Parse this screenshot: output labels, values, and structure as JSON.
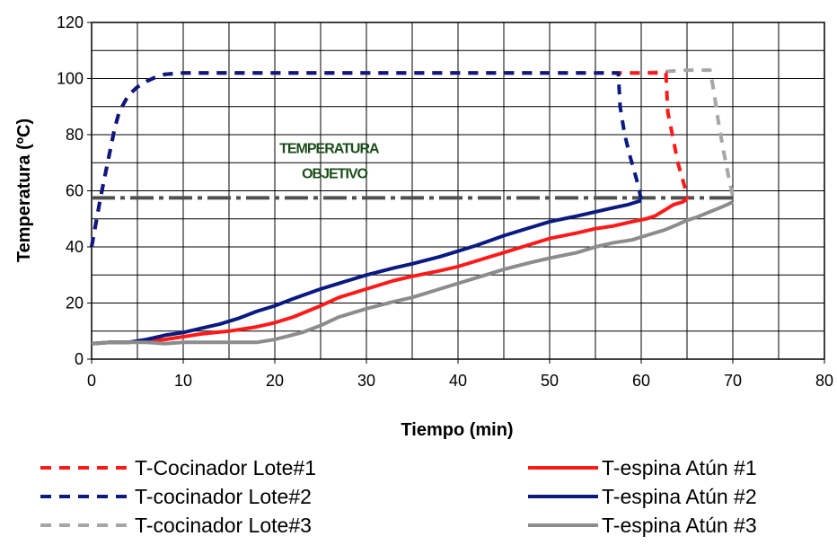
{
  "chart_data": {
    "type": "line",
    "title": "",
    "xlabel": "Tiempo (min)",
    "ylabel": "Temperatura (ºC)",
    "xlim": [
      0,
      80
    ],
    "ylim": [
      0,
      120
    ],
    "xticks": [
      0,
      10,
      20,
      30,
      40,
      50,
      60,
      70,
      80
    ],
    "yticks": [
      0,
      20,
      40,
      60,
      80,
      100,
      120
    ],
    "x_minor_step": 5,
    "y_minor_step": 10,
    "grid": true,
    "legend_position": "bottom",
    "annotation": {
      "line1": "TEMPERATURA",
      "line2": "OBJETIVO",
      "color": "#1a4d1a",
      "x": 20.5,
      "y1": 73.5,
      "y2": 64.5
    },
    "target_line": {
      "y": 57.5,
      "x_start": 0,
      "x_end": 70,
      "color": "#505050"
    },
    "series": [
      {
        "name": "T-Cocinador Lote#1",
        "style": "dashed",
        "color": "#ff1a1a",
        "points": [
          [
            0,
            40
          ],
          [
            0.5,
            49
          ],
          [
            1,
            58
          ],
          [
            1.5,
            66
          ],
          [
            2,
            74
          ],
          [
            2.5,
            82
          ],
          [
            3,
            88
          ],
          [
            4,
            94
          ],
          [
            5,
            97
          ],
          [
            6,
            99
          ],
          [
            7,
            100.5
          ],
          [
            8,
            101.5
          ],
          [
            10,
            102
          ],
          [
            20,
            102
          ],
          [
            30,
            102
          ],
          [
            40,
            102
          ],
          [
            50,
            102
          ],
          [
            60,
            102
          ],
          [
            62.7,
            102
          ],
          [
            62.9,
            88
          ],
          [
            63.4,
            80
          ],
          [
            64,
            70
          ],
          [
            64.7,
            62
          ],
          [
            65.1,
            57
          ]
        ]
      },
      {
        "name": "T-cocinador Lote#2",
        "style": "dashed",
        "color": "#0a1a80",
        "points": [
          [
            0,
            40
          ],
          [
            0.5,
            49
          ],
          [
            1,
            58
          ],
          [
            1.5,
            66
          ],
          [
            2,
            74
          ],
          [
            2.5,
            82
          ],
          [
            3,
            88
          ],
          [
            4,
            94
          ],
          [
            5,
            97
          ],
          [
            6,
            99
          ],
          [
            7,
            100.5
          ],
          [
            8,
            101.5
          ],
          [
            10,
            102
          ],
          [
            20,
            102
          ],
          [
            30,
            102
          ],
          [
            40,
            102
          ],
          [
            50,
            102
          ],
          [
            57.5,
            102
          ],
          [
            57.7,
            90
          ],
          [
            58.2,
            80
          ],
          [
            58.8,
            72
          ],
          [
            59.5,
            64
          ],
          [
            60,
            57
          ]
        ]
      },
      {
        "name": "T-cocinador Lote#3",
        "style": "dashed",
        "color": "#a6a6a6",
        "points": [
          [
            0,
            40
          ],
          [
            0.5,
            49
          ],
          [
            1,
            58
          ],
          [
            1.5,
            66
          ],
          [
            2,
            74
          ],
          [
            2.5,
            82
          ],
          [
            3,
            88
          ],
          [
            4,
            94
          ],
          [
            5,
            97
          ],
          [
            6,
            99
          ],
          [
            7,
            100.5
          ],
          [
            8,
            101.5
          ],
          [
            10,
            102
          ],
          [
            20,
            102
          ],
          [
            30,
            102
          ],
          [
            40,
            102
          ],
          [
            50,
            102
          ],
          [
            60,
            102
          ],
          [
            65,
            103
          ],
          [
            67.5,
            103
          ],
          [
            67.9,
            96
          ],
          [
            68.4,
            85
          ],
          [
            69,
            74
          ],
          [
            69.6,
            64
          ],
          [
            70,
            58
          ]
        ]
      },
      {
        "name": "T-espina Atún #1",
        "style": "solid",
        "color": "#ff1a1a",
        "points": [
          [
            0,
            5.5
          ],
          [
            2,
            6
          ],
          [
            4,
            6
          ],
          [
            6,
            6.5
          ],
          [
            8,
            7
          ],
          [
            10,
            8
          ],
          [
            12,
            9
          ],
          [
            15,
            10
          ],
          [
            18,
            11.5
          ],
          [
            20,
            13
          ],
          [
            22,
            15
          ],
          [
            25,
            19
          ],
          [
            27,
            22
          ],
          [
            30,
            25
          ],
          [
            33,
            28
          ],
          [
            35,
            29.5
          ],
          [
            38,
            31.5
          ],
          [
            40,
            33
          ],
          [
            42,
            35
          ],
          [
            45,
            38
          ],
          [
            48,
            41
          ],
          [
            50,
            43
          ],
          [
            53,
            45
          ],
          [
            55,
            46.5
          ],
          [
            57,
            47.5
          ],
          [
            59,
            49
          ],
          [
            60.5,
            50
          ],
          [
            61.5,
            51
          ],
          [
            62.5,
            53
          ],
          [
            63.5,
            55
          ],
          [
            64.5,
            56
          ],
          [
            65,
            57
          ]
        ]
      },
      {
        "name": "T-espina Atún #2",
        "style": "solid",
        "color": "#0a1a80",
        "points": [
          [
            0,
            5.5
          ],
          [
            2,
            6
          ],
          [
            4,
            6
          ],
          [
            6,
            7
          ],
          [
            8,
            8.5
          ],
          [
            10,
            9.5
          ],
          [
            12,
            11
          ],
          [
            14,
            12.5
          ],
          [
            16,
            14.5
          ],
          [
            18,
            17
          ],
          [
            20,
            19
          ],
          [
            22,
            21.5
          ],
          [
            25,
            25
          ],
          [
            28,
            28
          ],
          [
            30,
            30
          ],
          [
            33,
            32.5
          ],
          [
            35,
            34
          ],
          [
            38,
            36.5
          ],
          [
            40,
            38.5
          ],
          [
            42,
            40.5
          ],
          [
            45,
            44
          ],
          [
            48,
            47
          ],
          [
            50,
            49
          ],
          [
            53,
            51
          ],
          [
            55,
            52.5
          ],
          [
            57,
            54
          ],
          [
            58.5,
            55
          ],
          [
            60,
            56.5
          ]
        ]
      },
      {
        "name": "T-espina Atún #3",
        "style": "solid",
        "color": "#8c8c8c",
        "points": [
          [
            0,
            5.5
          ],
          [
            2,
            6
          ],
          [
            4,
            6
          ],
          [
            6,
            6
          ],
          [
            8,
            5.5
          ],
          [
            10,
            6
          ],
          [
            12,
            6
          ],
          [
            15,
            6
          ],
          [
            18,
            6
          ],
          [
            20,
            7
          ],
          [
            23,
            9.5
          ],
          [
            25,
            12
          ],
          [
            27,
            15
          ],
          [
            30,
            18
          ],
          [
            33,
            20.5
          ],
          [
            35,
            22
          ],
          [
            38,
            25
          ],
          [
            40,
            27
          ],
          [
            43,
            30
          ],
          [
            45,
            32
          ],
          [
            48,
            34.5
          ],
          [
            50,
            36
          ],
          [
            53,
            38
          ],
          [
            55,
            40
          ],
          [
            57,
            41.5
          ],
          [
            59,
            42.5
          ],
          [
            61,
            44.5
          ],
          [
            62.5,
            46
          ],
          [
            64,
            48
          ],
          [
            65,
            49.5
          ],
          [
            66,
            50.5
          ],
          [
            67.5,
            52.5
          ],
          [
            69,
            54.5
          ],
          [
            70,
            56
          ]
        ]
      }
    ]
  }
}
